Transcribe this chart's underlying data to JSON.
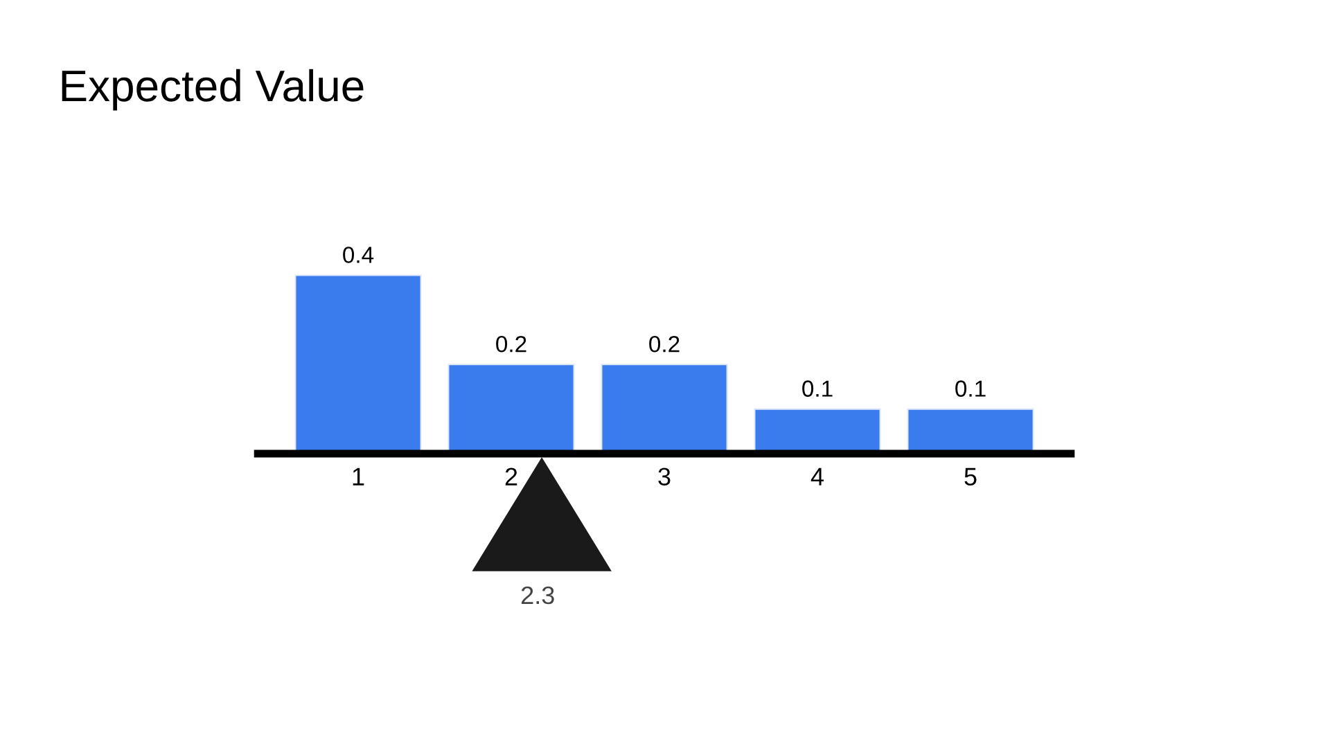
{
  "chart_data": {
    "type": "bar",
    "title": "Expected Value",
    "x": [
      1,
      2,
      3,
      4,
      5
    ],
    "values": [
      0.4,
      0.2,
      0.2,
      0.1,
      0.1
    ],
    "color": "#3a7bed",
    "xlim": [
      0.32,
      5.68
    ],
    "xticks": [
      1,
      2,
      3,
      4,
      5
    ],
    "tick_labels": "x",
    "data_labels": true,
    "grid": false,
    "annotations": [
      "2.3"
    ]
  }
}
